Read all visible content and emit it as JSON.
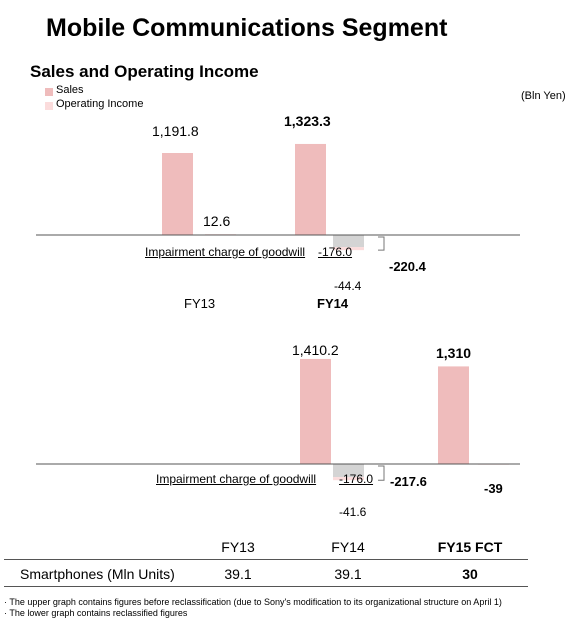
{
  "title": "Mobile Communications Segment",
  "subtitle": "Sales and Operating Income",
  "unit_label": "(Bln Yen)",
  "colors": {
    "sales": "#efbcbc",
    "operating_income": "#fbdcdc",
    "impairment": "#d4d4d4"
  },
  "legend": [
    {
      "label": "Sales"
    },
    {
      "label": "Operating Income"
    }
  ],
  "chart_data": [
    {
      "type": "bar",
      "categories": [
        "FY13",
        "FY14"
      ],
      "series": [
        {
          "name": "Sales",
          "values": [
            1191.8,
            1323.3
          ]
        },
        {
          "name": "Operating Income",
          "values": [
            12.6,
            -220.4
          ]
        }
      ],
      "value_labels": {
        "sales": [
          "1,191.8",
          "1,323.3"
        ],
        "operating_income": [
          "12.6",
          "-44.4"
        ]
      },
      "impairment": {
        "label": "Impairment charge of goodwill",
        "value": -176.0,
        "value_label": "-176.0"
      },
      "total_label": "-220.4",
      "note": "The upper graph contains figures before reclassification"
    },
    {
      "type": "bar",
      "categories": [
        "FY14",
        "FY15 FCT"
      ],
      "series": [
        {
          "name": "Sales",
          "values": [
            1410.2,
            1310
          ]
        },
        {
          "name": "Operating Income",
          "values": [
            -217.6,
            -39
          ]
        }
      ],
      "value_labels": {
        "sales": [
          "1,410.2",
          "1,310"
        ],
        "operating_income": [
          "-41.6",
          "-39"
        ]
      },
      "impairment": {
        "label": "Impairment charge of goodwill",
        "value": -176.0,
        "value_label": "-176.0"
      },
      "total_label": "-217.6",
      "note": "The lower graph contains reclassified figures"
    }
  ],
  "upper_categories": [
    "FY13",
    "FY14"
  ],
  "table": {
    "headers": [
      "FY13",
      "FY14",
      "FY15 FCT"
    ],
    "row_label": "Smartphones (Mln Units)",
    "values": [
      "39.1",
      "39.1",
      "30"
    ]
  },
  "footnotes": [
    "· The upper graph contains figures before reclassification (due to Sony's modification to its organizational structure on April 1)",
    "· The lower graph contains reclassified figures"
  ]
}
